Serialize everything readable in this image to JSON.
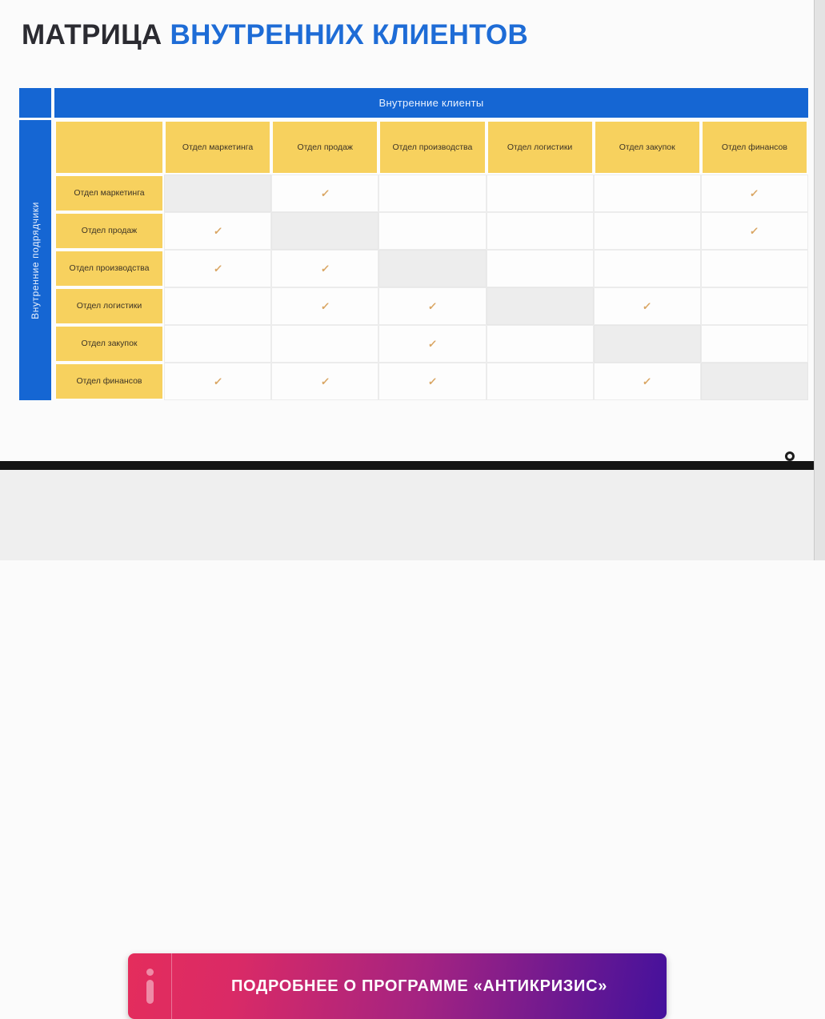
{
  "title": {
    "part1": "МАТРИЦА",
    "part2": "ВНУТРЕННИХ КЛИЕНТОВ"
  },
  "matrix": {
    "clients_label": "Внутренние клиенты",
    "contractors_label": "Внутренние подрядчики",
    "columns": [
      "Отдел маркетинга",
      "Отдел продаж",
      "Отдел производства",
      "Отдел логистики",
      "Отдел закупок",
      "Отдел финансов"
    ],
    "rows": [
      {
        "label": "Отдел маркетинга",
        "cells": [
          "self",
          "check",
          "",
          "",
          "",
          "check"
        ]
      },
      {
        "label": "Отдел продаж",
        "cells": [
          "check",
          "self",
          "",
          "",
          "",
          "check"
        ]
      },
      {
        "label": "Отдел производства",
        "cells": [
          "check",
          "check",
          "self",
          "",
          "",
          ""
        ]
      },
      {
        "label": "Отдел логистики",
        "cells": [
          "",
          "check",
          "check",
          "self",
          "check",
          ""
        ]
      },
      {
        "label": "Отдел закупок",
        "cells": [
          "",
          "",
          "check",
          "",
          "self",
          ""
        ]
      },
      {
        "label": "Отдел финансов",
        "cells": [
          "check",
          "check",
          "check",
          "",
          "check",
          "self"
        ]
      }
    ],
    "check_glyph": "✓"
  },
  "cta": {
    "label": "ПОДРОБНЕЕ О ПРОГРАММЕ «АНТИКРИЗИС»",
    "icon": "info-icon"
  },
  "colors": {
    "header_blue": "#1566d3",
    "cell_yellow": "#f7d15e",
    "check_tan": "#d9a562",
    "self_gray": "#ededed",
    "cta_gradient_start": "#e42d5c",
    "cta_gradient_end": "#44119c",
    "title_accent": "#1e6cd6"
  }
}
